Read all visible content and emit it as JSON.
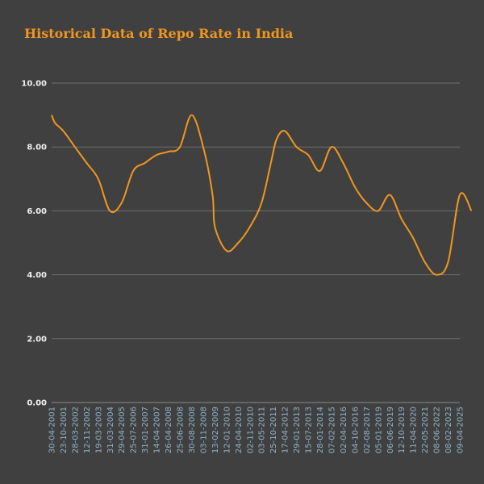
{
  "colors": {
    "background": "#404040",
    "series": "#f0961e",
    "title": "#f0961e",
    "grid": "#6e6e6e"
  },
  "chart_data": {
    "type": "line",
    "title": "Historical Data of Repo Rate in India",
    "xlabel": "",
    "ylabel": "",
    "ylim": [
      0,
      10
    ],
    "yticks": [
      "0.00",
      "2.00",
      "4.00",
      "6.00",
      "8.00",
      "10.00"
    ],
    "grid": true,
    "legend": "none",
    "x_tick_labels": [
      "30-04-2001",
      "23-10-2001",
      "28-03-2002",
      "12-11-2002",
      "19-03-2003",
      "31-03-2004",
      "29-04-2005",
      "25-07-2006",
      "31-01-2007",
      "14-04-2007",
      "26-04-2008",
      "25-06-2008",
      "30-08-2008",
      "03-11-2008",
      "13-02-2009",
      "12-01-2010",
      "24-04-2010",
      "02-11-2010",
      "03-05-2011",
      "25-10-2011",
      "17-04-2012",
      "29-01-2013",
      "15-07-2013",
      "28-01-2014",
      "07-02-2015",
      "02-04-2016",
      "04-10-2016",
      "02-08-2017",
      "05-01-2019",
      "06-06-2019",
      "12-10-2019",
      "11-04-2020",
      "22-05-2021",
      "08-06-2022",
      "08-02-2023",
      "09-04-2025"
    ],
    "series": [
      {
        "values": [
          [
            0,
            9.0
          ],
          [
            0.3,
            8.75
          ],
          [
            1,
            8.5
          ],
          [
            2,
            8.0
          ],
          [
            3,
            7.5
          ],
          [
            4,
            7.0
          ],
          [
            5,
            6.0
          ],
          [
            6,
            6.25
          ],
          [
            7,
            7.25
          ],
          [
            8,
            7.5
          ],
          [
            9,
            7.75
          ],
          [
            10,
            7.85
          ],
          [
            11,
            8.0
          ],
          [
            12,
            9.0
          ],
          [
            13,
            8.0
          ],
          [
            13.8,
            6.5
          ],
          [
            14,
            5.5
          ],
          [
            15,
            4.75
          ],
          [
            16,
            5.0
          ],
          [
            17,
            5.5
          ],
          [
            18,
            6.25
          ],
          [
            18.8,
            7.5
          ],
          [
            19.3,
            8.25
          ],
          [
            20,
            8.5
          ],
          [
            21,
            8.0
          ],
          [
            22,
            7.75
          ],
          [
            23,
            7.25
          ],
          [
            24,
            8.0
          ],
          [
            25,
            7.5
          ],
          [
            26,
            6.75
          ],
          [
            27,
            6.25
          ],
          [
            28,
            6.0
          ],
          [
            29,
            6.5
          ],
          [
            30,
            5.75
          ],
          [
            31,
            5.15
          ],
          [
            32,
            4.4
          ],
          [
            33,
            4.0
          ],
          [
            34,
            4.4
          ],
          [
            35,
            6.5
          ],
          [
            36,
            6.0
          ]
        ]
      }
    ]
  }
}
